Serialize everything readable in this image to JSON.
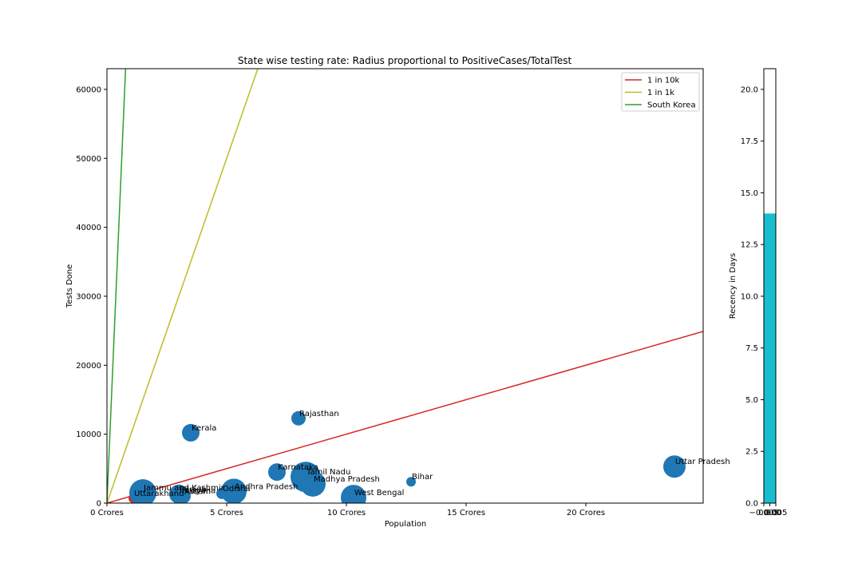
{
  "chart_data": [
    {
      "type": "scatter",
      "title": "State wise testing rate: Radius proportional to PositiveCases/TotalTest",
      "xlabel": "Population",
      "ylabel": "Tests Done",
      "xlim": [
        0,
        24.9
      ],
      "ylim": [
        0,
        63000
      ],
      "x_unit": "Crores",
      "xticks": [
        0,
        5,
        10,
        15,
        20
      ],
      "xtick_labels": [
        "0 Crores",
        "5 Crores",
        "10 Crores",
        "15 Crores",
        "20 Crores"
      ],
      "yticks": [
        0,
        10000,
        20000,
        30000,
        40000,
        50000,
        60000
      ],
      "ytick_labels": [
        "0",
        "10000",
        "20000",
        "30000",
        "40000",
        "50000",
        "60000"
      ],
      "grid": false,
      "legend_position": "top-right",
      "marker_color": "#1f77b4",
      "lines": [
        {
          "name": "1 in 10k",
          "color": "#d62728",
          "slope_tests_per_crore": 1000
        },
        {
          "name": "1 in 1k",
          "color": "#bcbd22",
          "slope_tests_per_crore": 10000
        },
        {
          "name": "South Korea",
          "color": "#2ca02c",
          "slope_tests_per_crore": 81000
        }
      ],
      "points": [
        {
          "label": "Uttarakhand",
          "x": 1.1,
          "y": 700,
          "size": 6,
          "color": "#d62728"
        },
        {
          "label": "Jammu and Kashmir",
          "x": 1.5,
          "y": 1500,
          "size": 17
        },
        {
          "label": "Punjab",
          "x": 3.0,
          "y": 1300,
          "size": 12
        },
        {
          "label": "Haryana",
          "x": 3.1,
          "y": 1100,
          "size": 10
        },
        {
          "label": "Assam",
          "x": 3.2,
          "y": 1000,
          "size": 9
        },
        {
          "label": "Kerala",
          "x": 3.5,
          "y": 10200,
          "size": 11
        },
        {
          "label": "Odisha",
          "x": 4.8,
          "y": 1400,
          "size": 7
        },
        {
          "label": "Andhra Pradesh",
          "x": 5.3,
          "y": 1700,
          "size": 16
        },
        {
          "label": "Karnataka",
          "x": 7.1,
          "y": 4500,
          "size": 11
        },
        {
          "label": "Rajasthan",
          "x": 8.0,
          "y": 12300,
          "size": 9
        },
        {
          "label": "Tamil Nadu",
          "x": 8.3,
          "y": 3800,
          "size": 19
        },
        {
          "label": "Madhya Pradesh",
          "x": 8.6,
          "y": 2800,
          "size": 16
        },
        {
          "label": "West Bengal",
          "x": 10.3,
          "y": 800,
          "size": 16
        },
        {
          "label": "Bihar",
          "x": 12.7,
          "y": 3100,
          "size": 6
        },
        {
          "label": "Uttar Pradesh",
          "x": 23.7,
          "y": 5300,
          "size": 14
        }
      ]
    },
    {
      "type": "bar",
      "ylabel": "Recency in Days",
      "ylim": [
        0,
        21
      ],
      "yticks": [
        0,
        2.5,
        5,
        7.5,
        10,
        12.5,
        15,
        17.5,
        20
      ],
      "ytick_labels": [
        "0.0",
        "2.5",
        "5.0",
        "7.5",
        "10.0",
        "12.5",
        "15.0",
        "17.5",
        "20.0"
      ],
      "xtick_labels": [
        "−0.005",
        "0.000",
        "0.005"
      ],
      "values": [
        14
      ],
      "bar_color": "#17becf"
    }
  ]
}
